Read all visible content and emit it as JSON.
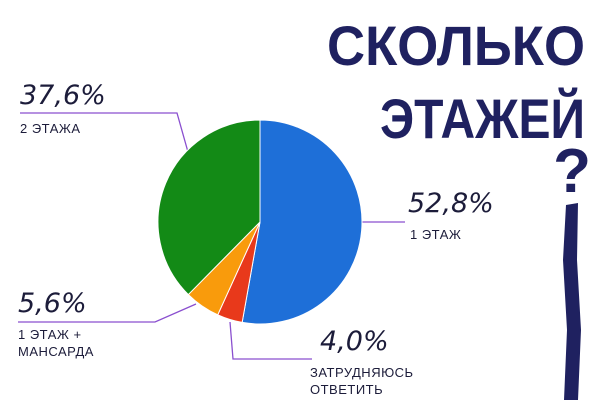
{
  "chart_data": {
    "type": "pie",
    "title": [
      "СКОЛЬКО",
      "ЭТАЖЕЙ",
      "?"
    ],
    "categories": [
      "1 ЭТАЖ",
      "ЗАТРУДНЯЮСЬ ОТВЕТИТЬ",
      "1 ЭТАЖ + МАНСАРДА",
      "2 ЭТАЖА"
    ],
    "values": [
      52.8,
      4.0,
      5.6,
      37.6
    ],
    "value_labels": [
      "52,8%",
      "4,0%",
      "5,6%",
      "37,6%"
    ],
    "colors": [
      "#1e6fd8",
      "#e8391b",
      "#f99b0c",
      "#138a16"
    ]
  }
}
